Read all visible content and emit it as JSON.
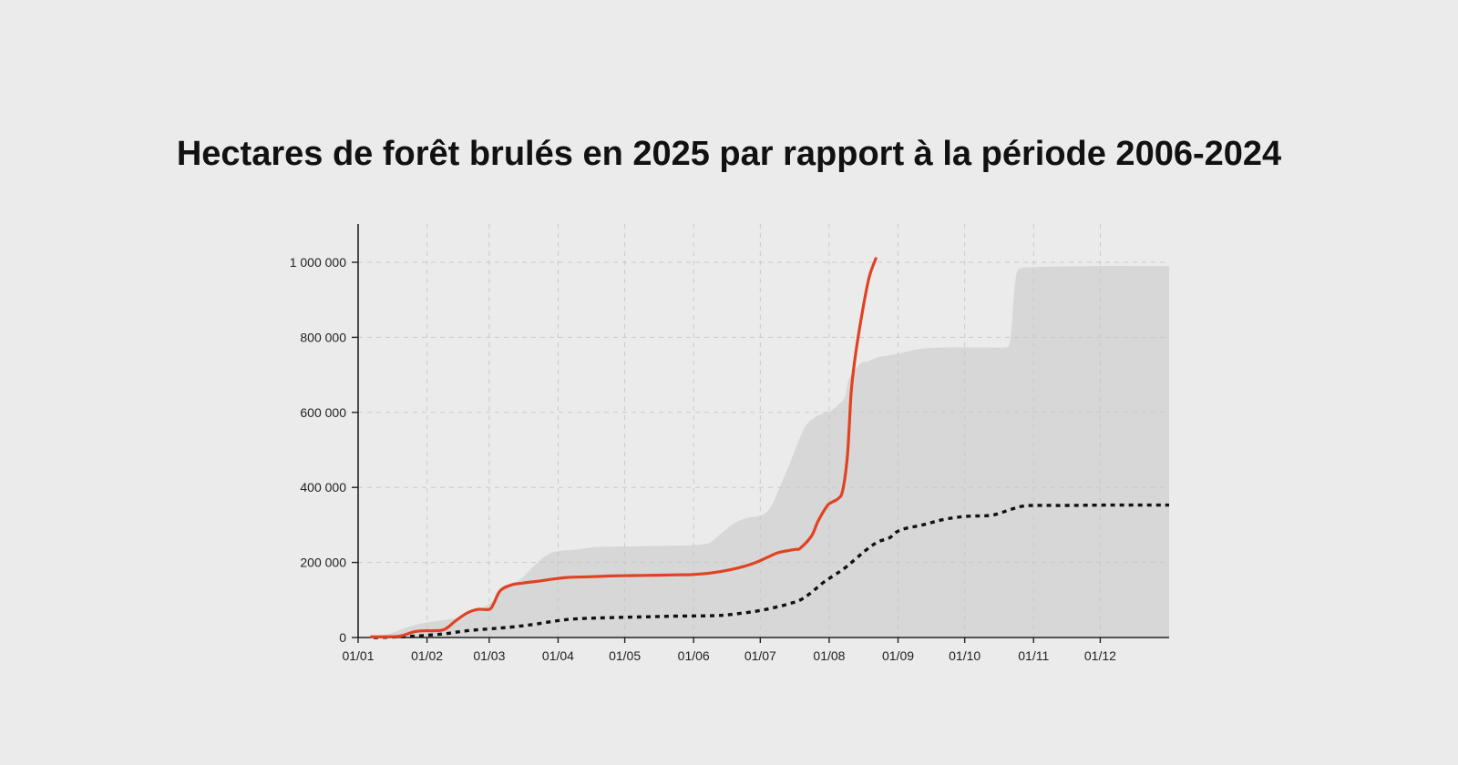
{
  "chart_data": {
    "type": "line",
    "title": "Hectares de forêt brulés en 2025 par rapport à la période 2006-2024",
    "xlabel": "",
    "ylabel": "",
    "x_axis": "day of year (tick labels dd/mm)",
    "xlim": [
      1,
      366
    ],
    "ylim": [
      0,
      1100000
    ],
    "grid": true,
    "legend": "none",
    "x_tick_labels": [
      "01/01",
      "01/02",
      "01/03",
      "01/04",
      "01/05",
      "01/06",
      "01/07",
      "01/08",
      "01/09",
      "01/10",
      "01/11",
      "01/12"
    ],
    "x_tick_days": [
      1,
      32,
      60,
      91,
      121,
      152,
      182,
      213,
      244,
      274,
      305,
      335
    ],
    "y_tick_labels": [
      "0",
      "200 000",
      "400 000",
      "600 000",
      "800 000",
      "1 000 000"
    ],
    "y_tick_values": [
      0,
      200000,
      400000,
      600000,
      800000,
      1000000
    ],
    "series": [
      {
        "role": "range-max-area",
        "color": "#d7d7d7",
        "x": [
          7,
          15,
          22,
          30,
          38,
          45,
          52,
          60,
          67,
          74,
          80,
          86,
          91,
          100,
          106,
          115,
          125,
          135,
          145,
          152,
          158,
          161,
          167,
          172,
          177,
          180,
          184,
          187,
          190,
          195,
          199,
          202,
          205,
          208,
          211,
          214,
          217,
          220,
          222,
          227,
          230,
          234,
          238,
          243,
          248,
          255,
          265,
          275,
          285,
          292,
          294,
          295,
          296,
          297,
          298,
          300,
          304,
          310,
          320,
          335,
          350,
          366
        ],
        "y": [
          5000,
          10000,
          25000,
          38000,
          45000,
          52000,
          65000,
          90000,
          130000,
          155000,
          190000,
          220000,
          230000,
          235000,
          240000,
          242000,
          243000,
          244000,
          245000,
          246000,
          250000,
          260000,
          290000,
          310000,
          320000,
          322000,
          330000,
          350000,
          390000,
          460000,
          520000,
          560000,
          580000,
          592000,
          598000,
          605000,
          620000,
          640000,
          690000,
          730000,
          735000,
          745000,
          750000,
          755000,
          762000,
          770000,
          773000,
          773000,
          773000,
          773000,
          780000,
          820000,
          900000,
          960000,
          980000,
          985000,
          987000,
          988000,
          989000,
          990000,
          990000,
          990000
        ]
      },
      {
        "role": "average-2006-2024",
        "color": "#111111",
        "dashed": true,
        "x": [
          8,
          20,
          30,
          40,
          50,
          60,
          70,
          80,
          91,
          100,
          115,
          130,
          145,
          160,
          168,
          180,
          190,
          195,
          200,
          205,
          210,
          215,
          220,
          225,
          230,
          235,
          240,
          243,
          247,
          255,
          265,
          275,
          285,
          290,
          295,
          300,
          305,
          320,
          340,
          366
        ],
        "y": [
          0,
          2000,
          5000,
          10000,
          18000,
          23000,
          28000,
          35000,
          45000,
          50000,
          53000,
          55000,
          57000,
          58000,
          61000,
          70000,
          82000,
          90000,
          100000,
          120000,
          145000,
          165000,
          185000,
          210000,
          235000,
          255000,
          265000,
          280000,
          290000,
          300000,
          315000,
          323000,
          325000,
          332000,
          342000,
          350000,
          352000,
          352000,
          353000,
          353000
        ]
      },
      {
        "role": "2025",
        "color": "#e04223",
        "x": [
          7,
          14,
          20,
          26,
          31,
          35,
          40,
          45,
          50,
          55,
          60,
          62,
          65,
          70,
          75,
          82,
          88,
          95,
          105,
          115,
          125,
          135,
          145,
          152,
          160,
          168,
          175,
          180,
          185,
          190,
          195,
          198,
          200,
          205,
          208,
          212,
          214,
          217,
          219,
          221,
          222,
          223,
          225,
          228,
          231,
          234
        ],
        "y": [
          2000,
          2000,
          4000,
          15000,
          18000,
          18000,
          22000,
          45000,
          65000,
          75000,
          75000,
          90000,
          125000,
          140000,
          145000,
          150000,
          155000,
          160000,
          162000,
          164000,
          165000,
          166000,
          167000,
          168000,
          172000,
          180000,
          190000,
          200000,
          213000,
          226000,
          232000,
          235000,
          238000,
          270000,
          310000,
          350000,
          360000,
          370000,
          390000,
          470000,
          560000,
          660000,
          760000,
          870000,
          960000,
          1010000
        ]
      }
    ]
  }
}
